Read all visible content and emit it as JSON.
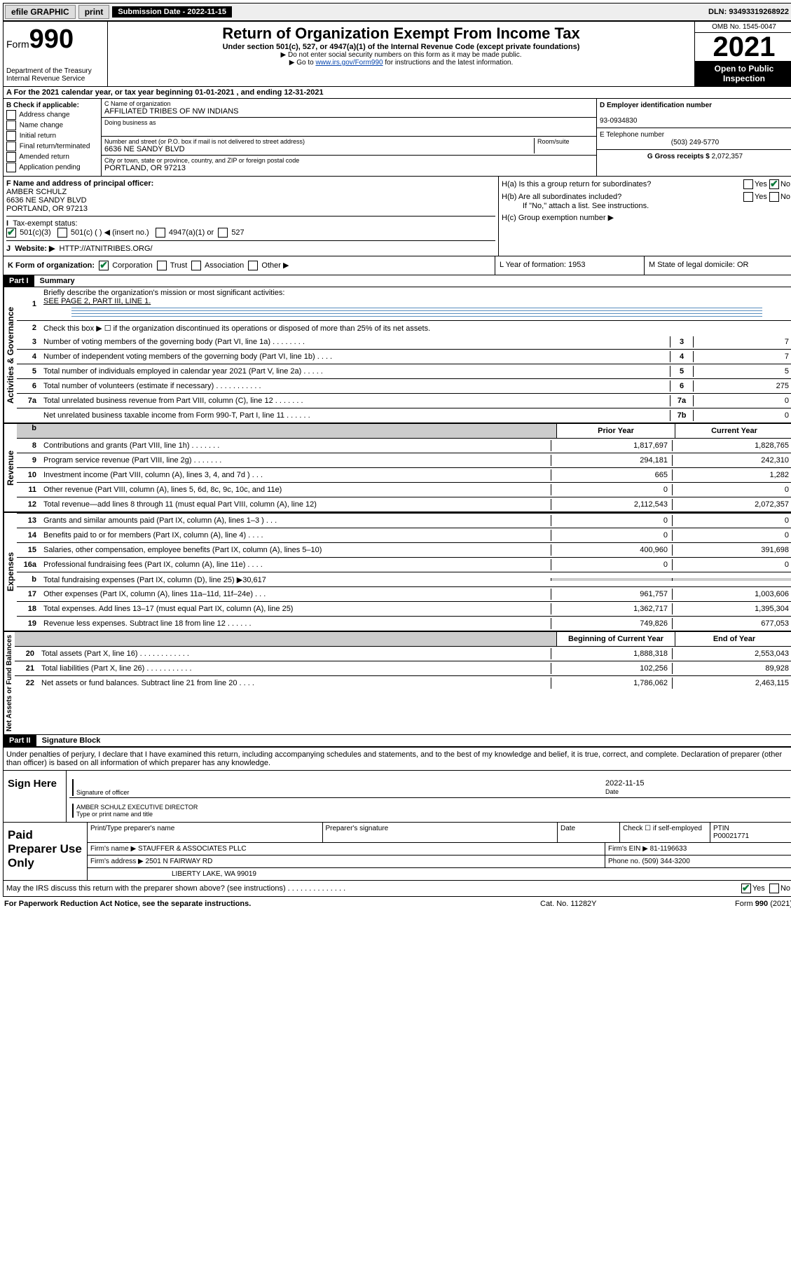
{
  "topbar": {
    "efile": "efile GRAPHIC",
    "print": "print",
    "submission": "Submission Date - 2022-11-15",
    "dln": "DLN: 93493319268922"
  },
  "header": {
    "form_prefix": "Form",
    "form_num": "990",
    "dept": "Department of the Treasury",
    "irs": "Internal Revenue Service",
    "title": "Return of Organization Exempt From Income Tax",
    "sub": "Under section 501(c), 527, or 4947(a)(1) of the Internal Revenue Code (except private foundations)",
    "note1": "▶ Do not enter social security numbers on this form as it may be made public.",
    "note2_pre": "▶ Go to ",
    "note2_link": "www.irs.gov/Form990",
    "note2_post": " for instructions and the latest information.",
    "omb": "OMB No. 1545-0047",
    "year": "2021",
    "open": "Open to Public Inspection"
  },
  "row_a": "A For the 2021 calendar year, or tax year beginning 01-01-2021   , and ending 12-31-2021",
  "col_b": {
    "title": "B Check if applicable:",
    "items": [
      "Address change",
      "Name change",
      "Initial return",
      "Final return/terminated",
      "Amended return",
      "Application pending"
    ]
  },
  "col_c": {
    "name_label": "C Name of organization",
    "name": "AFFILIATED TRIBES OF NW INDIANS",
    "dba_label": "Doing business as",
    "addr_label": "Number and street (or P.O. box if mail is not delivered to street address)",
    "room_label": "Room/suite",
    "addr": "6636 NE SANDY BLVD",
    "city_label": "City or town, state or province, country, and ZIP or foreign postal code",
    "city": "PORTLAND, OR  97213"
  },
  "col_d": {
    "ein_label": "D Employer identification number",
    "ein": "93-0934830",
    "tel_label": "E Telephone number",
    "tel": "(503) 249-5770",
    "gross_label": "G Gross receipts $",
    "gross": "2,072,357"
  },
  "row_f": {
    "f_label": "F  Name and address of principal officer:",
    "f_name": "AMBER SCHULZ",
    "f_addr1": "6636 NE SANDY BLVD",
    "f_addr2": "PORTLAND, OR  97213",
    "i_label": "Tax-exempt status:",
    "i_501c3": "501(c)(3)",
    "i_501c": "501(c) (  ) ◀ (insert no.)",
    "i_4947": "4947(a)(1) or",
    "i_527": "527",
    "j_label": "Website: ▶",
    "j_url": "HTTP://ATNITRIBES.ORG/"
  },
  "row_h": {
    "ha": "H(a)  Is this a group return for subordinates?",
    "hb": "H(b)  Are all subordinates included?",
    "hb_note": "If \"No,\" attach a list. See instructions.",
    "hc": "H(c)  Group exemption number ▶",
    "yes": "Yes",
    "no": "No"
  },
  "row_k": {
    "k": "K Form of organization:",
    "corp": "Corporation",
    "trust": "Trust",
    "assoc": "Association",
    "other": "Other ▶",
    "l": "L Year of formation: 1953",
    "m": "M State of legal domicile: OR"
  },
  "part1": {
    "hdr": "Part I",
    "title": "Summary",
    "l1": "Briefly describe the organization's mission or most significant activities:",
    "l1v": "SEE PAGE 2, PART III, LINE 1.",
    "l2": "Check this box ▶ ☐  if the organization discontinued its operations or disposed of more than 25% of its net assets.",
    "lines_gov": [
      {
        "n": "3",
        "d": "Number of voting members of the governing body (Part VI, line 1a)  .    .    .    .    .    .    .    .",
        "b": "3",
        "v": "7"
      },
      {
        "n": "4",
        "d": "Number of independent voting members of the governing body (Part VI, line 1b)   .    .    .    .",
        "b": "4",
        "v": "7"
      },
      {
        "n": "5",
        "d": "Total number of individuals employed in calendar year 2021 (Part V, line 2a)  .    .    .    .    .",
        "b": "5",
        "v": "5"
      },
      {
        "n": "6",
        "d": "Total number of volunteers (estimate if necessary)   .    .    .    .    .    .    .    .    .    .    .",
        "b": "6",
        "v": "275"
      },
      {
        "n": "7a",
        "d": "Total unrelated business revenue from Part VIII, column (C), line 12   .    .    .    .    .    .    .",
        "b": "7a",
        "v": "0"
      },
      {
        "n": "",
        "d": "Net unrelated business taxable income from Form 990-T, Part I, line 11   .    .    .    .    .    .",
        "b": "7b",
        "v": "0"
      }
    ],
    "col_hdr_prior": "Prior Year",
    "col_hdr_curr": "Current Year",
    "lines_rev": [
      {
        "n": "8",
        "d": "Contributions and grants (Part VIII, line 1h)   .    .    .    .    .    .    .",
        "p": "1,817,697",
        "c": "1,828,765"
      },
      {
        "n": "9",
        "d": "Program service revenue (Part VIII, line 2g)   .    .    .    .    .    .    .",
        "p": "294,181",
        "c": "242,310"
      },
      {
        "n": "10",
        "d": "Investment income (Part VIII, column (A), lines 3, 4, and 7d )   .    .    .",
        "p": "665",
        "c": "1,282"
      },
      {
        "n": "11",
        "d": "Other revenue (Part VIII, column (A), lines 5, 6d, 8c, 9c, 10c, and 11e)",
        "p": "0",
        "c": "0"
      },
      {
        "n": "12",
        "d": "Total revenue—add lines 8 through 11 (must equal Part VIII, column (A), line 12)",
        "p": "2,112,543",
        "c": "2,072,357"
      }
    ],
    "lines_exp": [
      {
        "n": "13",
        "d": "Grants and similar amounts paid (Part IX, column (A), lines 1–3 )   .    .    .",
        "p": "0",
        "c": "0"
      },
      {
        "n": "14",
        "d": "Benefits paid to or for members (Part IX, column (A), line 4)   .    .    .    .",
        "p": "0",
        "c": "0"
      },
      {
        "n": "15",
        "d": "Salaries, other compensation, employee benefits (Part IX, column (A), lines 5–10)",
        "p": "400,960",
        "c": "391,698"
      },
      {
        "n": "16a",
        "d": "Professional fundraising fees (Part IX, column (A), line 11e)   .    .    .    .",
        "p": "0",
        "c": "0"
      },
      {
        "n": "b",
        "d": "Total fundraising expenses (Part IX, column (D), line 25) ▶30,617",
        "p": "",
        "c": "",
        "shade": true
      },
      {
        "n": "17",
        "d": "Other expenses (Part IX, column (A), lines 11a–11d, 11f–24e)   .    .    .",
        "p": "961,757",
        "c": "1,003,606"
      },
      {
        "n": "18",
        "d": "Total expenses. Add lines 13–17 (must equal Part IX, column (A), line 25)",
        "p": "1,362,717",
        "c": "1,395,304"
      },
      {
        "n": "19",
        "d": "Revenue less expenses. Subtract line 18 from line 12   .    .    .    .    .    .",
        "p": "749,826",
        "c": "677,053"
      }
    ],
    "col_hdr_beg": "Beginning of Current Year",
    "col_hdr_end": "End of Year",
    "lines_net": [
      {
        "n": "20",
        "d": "Total assets (Part X, line 16)   .    .    .    .    .    .    .    .    .    .    .    .",
        "p": "1,888,318",
        "c": "2,553,043"
      },
      {
        "n": "21",
        "d": "Total liabilities (Part X, line 26)   .    .    .    .    .    .    .    .    .    .    .",
        "p": "102,256",
        "c": "89,928"
      },
      {
        "n": "22",
        "d": "Net assets or fund balances. Subtract line 21 from line 20   .    .    .    .",
        "p": "1,786,062",
        "c": "2,463,115"
      }
    ]
  },
  "part2": {
    "hdr": "Part II",
    "title": "Signature Block",
    "decl": "Under penalties of perjury, I declare that I have examined this return, including accompanying schedules and statements, and to the best of my knowledge and belief, it is true, correct, and complete. Declaration of preparer (other than officer) is based on all information of which preparer has any knowledge.",
    "sign_here": "Sign Here",
    "sig_officer": "Signature of officer",
    "sig_date": "2022-11-15",
    "date_label": "Date",
    "sig_name": "AMBER SCHULZ  EXECUTIVE DIRECTOR",
    "sig_name_label": "Type or print name and title",
    "paid": "Paid Preparer Use Only",
    "p_name_label": "Print/Type preparer's name",
    "p_sig_label": "Preparer's signature",
    "p_date_label": "Date",
    "p_check": "Check ☐  if self-employed",
    "p_ptin_label": "PTIN",
    "p_ptin": "P00021771",
    "firm_name_label": "Firm's name    ▶",
    "firm_name": "STAUFFER & ASSOCIATES PLLC",
    "firm_ein_label": "Firm's EIN ▶",
    "firm_ein": "81-1196633",
    "firm_addr_label": "Firm's address ▶",
    "firm_addr1": "2501 N FAIRWAY RD",
    "firm_addr2": "LIBERTY LAKE, WA  99019",
    "phone_label": "Phone no.",
    "phone": "(509) 344-3200",
    "discuss": "May the IRS discuss this return with the preparer shown above? (see instructions)   .    .    .    .    .    .    .    .    .    .    .    .    .    .",
    "discuss_yes": "Yes",
    "discuss_no": "No"
  },
  "footer": {
    "l": "For Paperwork Reduction Act Notice, see the separate instructions.",
    "m": "Cat. No. 11282Y",
    "r": "Form 990 (2021)"
  },
  "vlabels": {
    "gov": "Activities & Governance",
    "rev": "Revenue",
    "exp": "Expenses",
    "net": "Net Assets or Fund Balances"
  }
}
